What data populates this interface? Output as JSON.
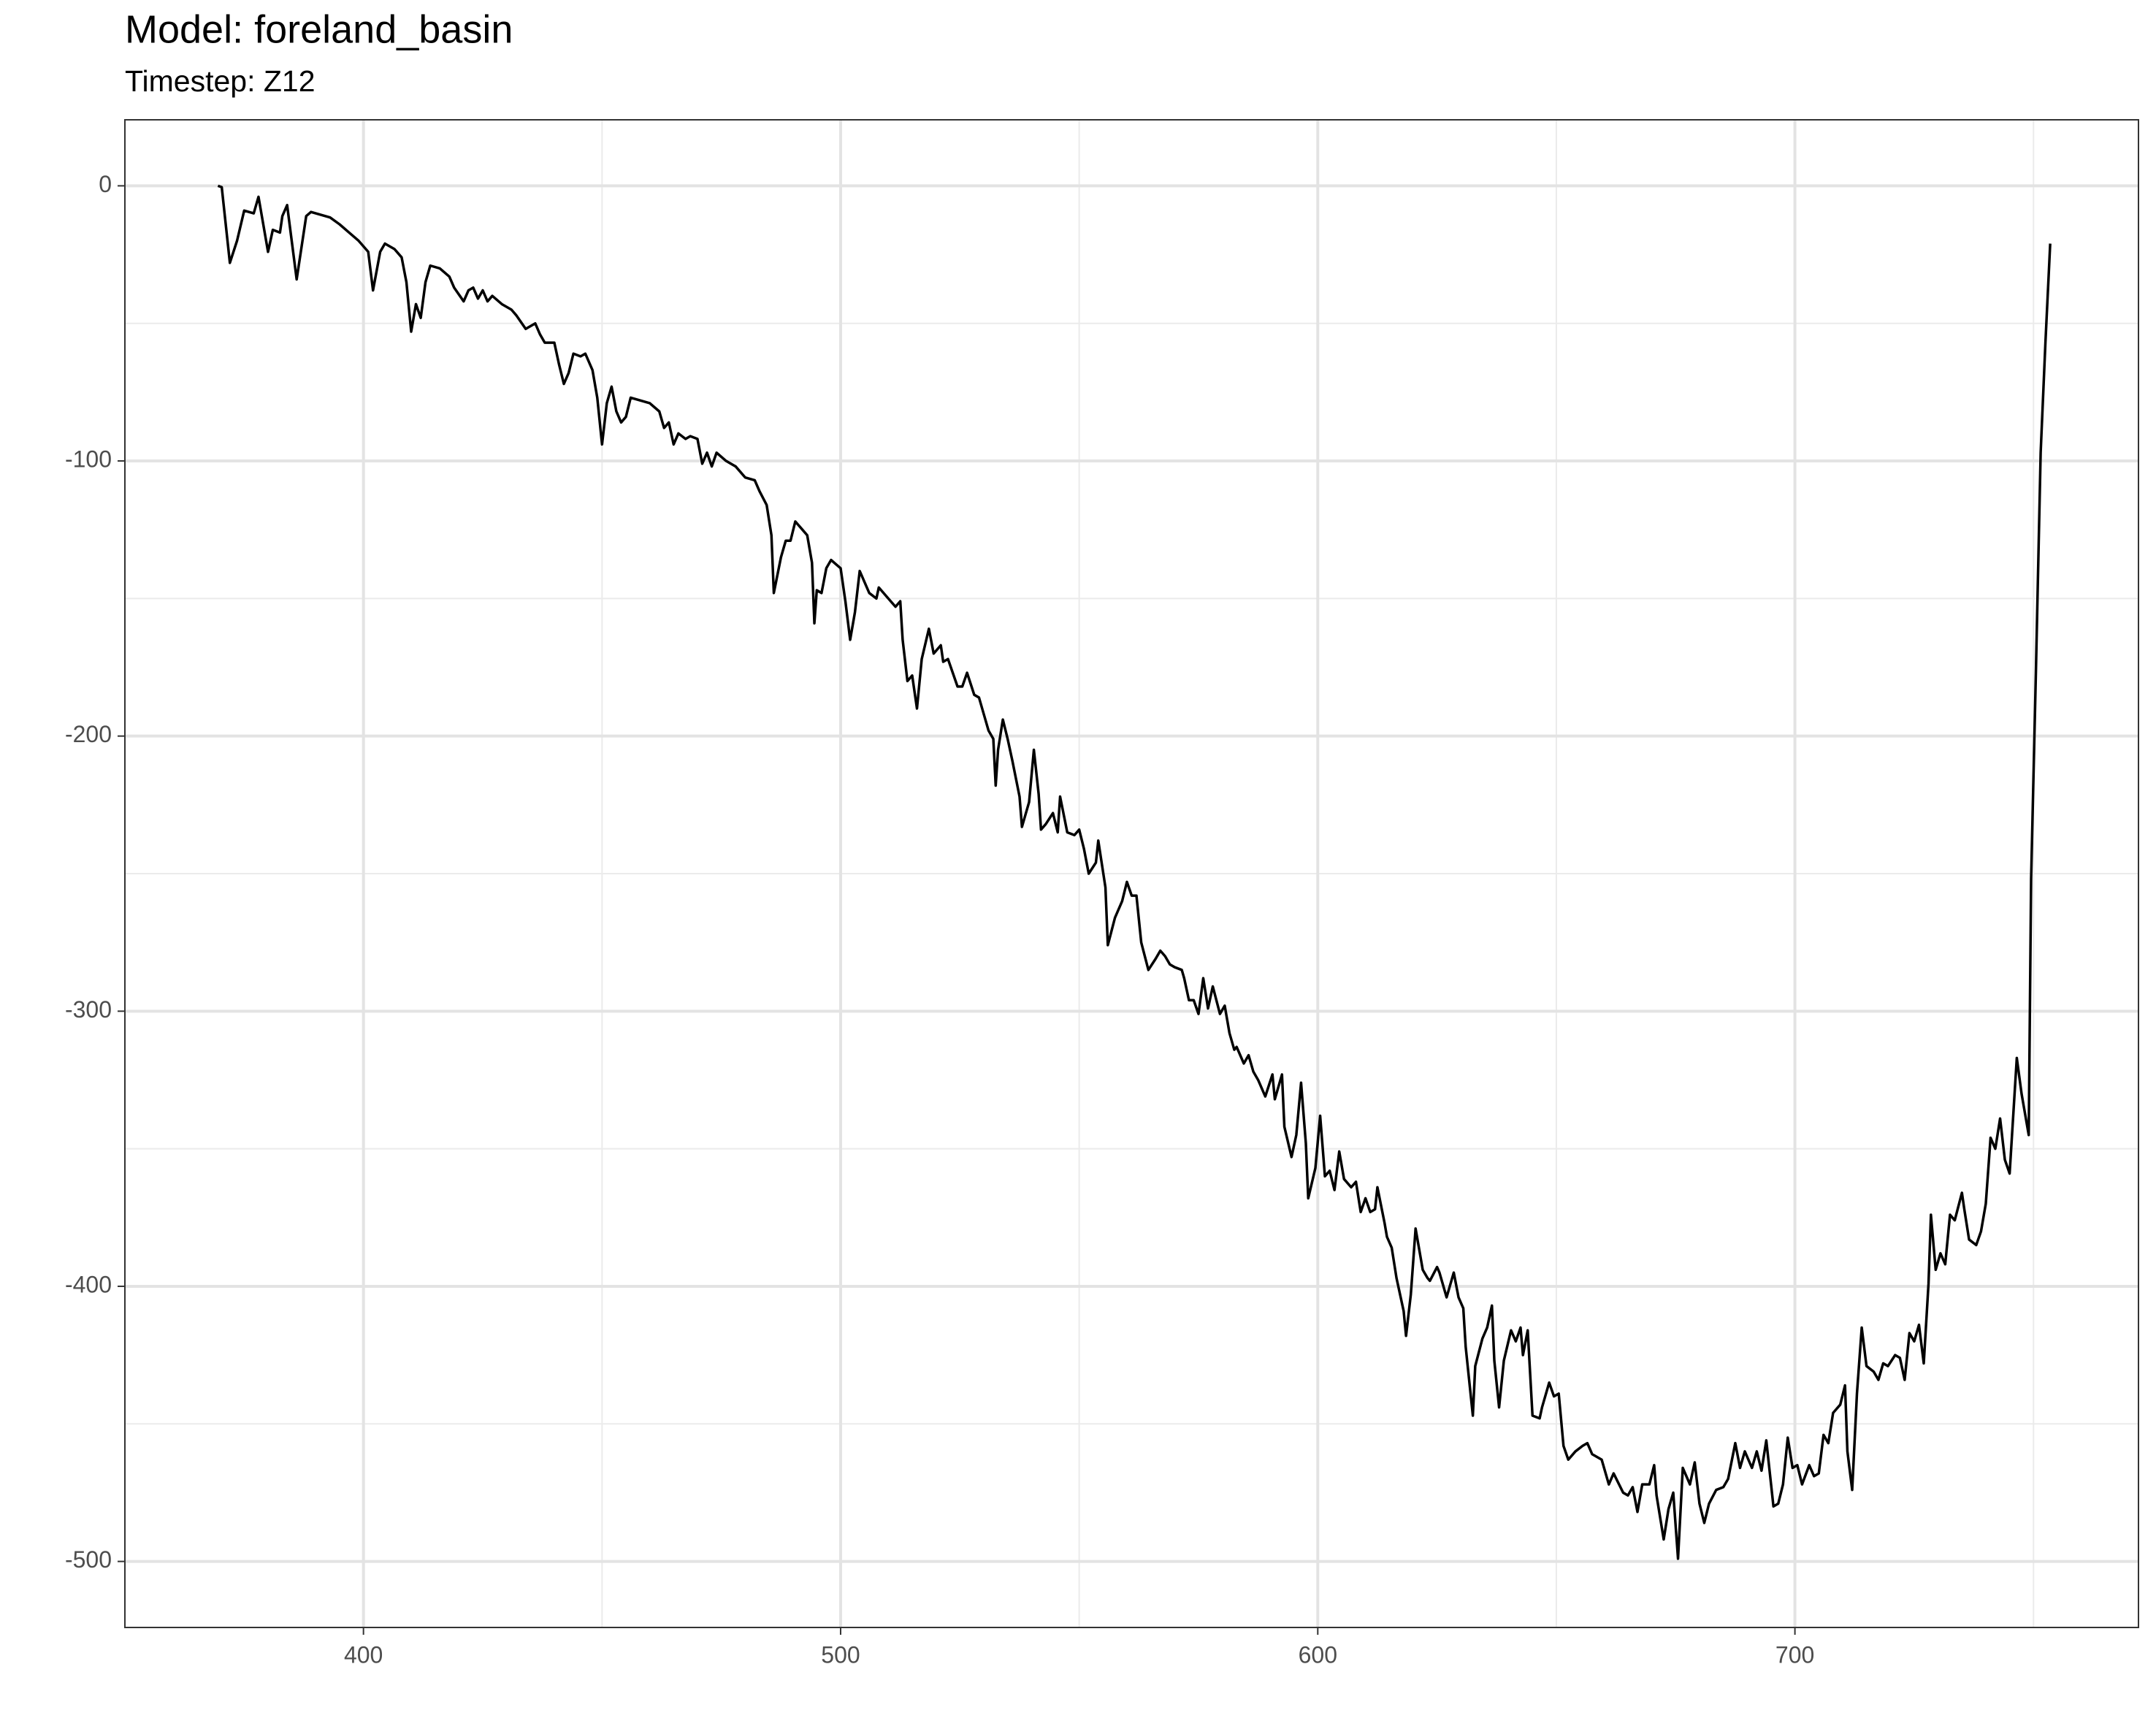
{
  "chart_data": {
    "type": "line",
    "title": "Model: foreland_basin",
    "subtitle": "Timestep: Z12",
    "color": "#000000",
    "grid": true,
    "xlim": [
      350,
      772
    ],
    "ylim": [
      -524,
      24
    ],
    "xticks": [
      400,
      500,
      600,
      700
    ],
    "yticks": [
      0,
      -100,
      -200,
      -300,
      -400,
      -500
    ],
    "x_minor_grid": [
      450,
      550,
      650,
      750
    ],
    "y_minor_grid": [
      -50,
      -150,
      -250,
      -350,
      -450
    ],
    "x": [
      369.5,
      370.3,
      372,
      373.5,
      375,
      377,
      378,
      380,
      381,
      382.5,
      383,
      384,
      386,
      388,
      389,
      391,
      393,
      395,
      397,
      399,
      401,
      402,
      403.5,
      404.5,
      406.5,
      408,
      409,
      410,
      411,
      412,
      413,
      414,
      416,
      418,
      419,
      421,
      422,
      423,
      424,
      425,
      426,
      427,
      429,
      431,
      432,
      434,
      436,
      437,
      438,
      440,
      441,
      442,
      443,
      444,
      445.5,
      446.5,
      448,
      449,
      450,
      451,
      452,
      453,
      454,
      455,
      456,
      458,
      460,
      462,
      463,
      464,
      465,
      466,
      467.5,
      468.5,
      470,
      471,
      472,
      473,
      474,
      476,
      478,
      480,
      482,
      483,
      484.5,
      485.5,
      486,
      487.5,
      488.5,
      489.5,
      490.5,
      492,
      493,
      494,
      494.5,
      495,
      496,
      497,
      498,
      500,
      501,
      502,
      503,
      504,
      506,
      507.5,
      508,
      510,
      511.5,
      512.5,
      513,
      514,
      515,
      516,
      517,
      518.5,
      519.5,
      521,
      521.5,
      522.5,
      524.5,
      525.5,
      526.5,
      528,
      529,
      530,
      531,
      532,
      532.5,
      533,
      534,
      535,
      536,
      537.5,
      538,
      539.5,
      540.5,
      541.5,
      542,
      543,
      544.5,
      545.5,
      546,
      547.5,
      549,
      550,
      551,
      552,
      553.5,
      554,
      555.5,
      556,
      557.5,
      559,
      560,
      561,
      562,
      563,
      564.5,
      566,
      567,
      568,
      569,
      570,
      571.5,
      572,
      573,
      574,
      575,
      576,
      577,
      578,
      579.5,
      580.5,
      581.5,
      582.5,
      583,
      584.5,
      585.5,
      586.5,
      587.5,
      589,
      590.5,
      591,
      592.5,
      593,
      594.5,
      595.5,
      596.5,
      597.5,
      598,
      599.5,
      600.5,
      601.5,
      602.5,
      603.5,
      604.5,
      605.5,
      607,
      608,
      609,
      610,
      611,
      612,
      612.5,
      614,
      614.5,
      615.5,
      616.5,
      618,
      618.5,
      619.5,
      620.5,
      622,
      623,
      623.5,
      625,
      625.5,
      627,
      628,
      628.5,
      629.5,
      630.5,
      631,
      632.5,
      633,
      634.5,
      635.5,
      636.5,
      637,
      638,
      639,
      640.5,
      641.5,
      642.5,
      643,
      644,
      645,
      646.5,
      647,
      648.5,
      649.5,
      650.5,
      651.5,
      652.5,
      654,
      655.5,
      656.5,
      657.5,
      659.5,
      661,
      662,
      664,
      665,
      666,
      667,
      668,
      669.5,
      670.5,
      671,
      672.5,
      673.5,
      674.5,
      675.5,
      676.5,
      678,
      679,
      680,
      681,
      682,
      683.5,
      685,
      686,
      687.5,
      688.5,
      689.5,
      691,
      692,
      693,
      694,
      695.5,
      696.5,
      697.5,
      698.5,
      699.5,
      700.5,
      701.5,
      703,
      704,
      705,
      706,
      707,
      708,
      709.5,
      710.5,
      711,
      712,
      713,
      714,
      715,
      716.5,
      717.5,
      718.5,
      719.5,
      721,
      722,
      723,
      724,
      725,
      726,
      727,
      728,
      728.5,
      729.5,
      730.5,
      731.5,
      732.5,
      733.5,
      735,
      735.5,
      736.5,
      738,
      739,
      740,
      741,
      742,
      743,
      744,
      745,
      745.5,
      746.5,
      747.5,
      749,
      749.5,
      750.5,
      751.5,
      752.5,
      753.5
    ],
    "values": [
      0,
      -0.5,
      -28,
      -20,
      -9,
      -10,
      -4,
      -24,
      -16,
      -17,
      -11,
      -7,
      -34,
      -11,
      -9.5,
      -10.5,
      -11.5,
      -14,
      -17,
      -20,
      -24,
      -38,
      -24,
      -21,
      -23,
      -26,
      -35,
      -53,
      -43,
      -48,
      -35,
      -29,
      -30,
      -33,
      -37,
      -42,
      -38,
      -37,
      -41,
      -38,
      -42,
      -40,
      -43,
      -45,
      -47,
      -52,
      -50,
      -54,
      -57,
      -57,
      -65,
      -72,
      -68,
      -61,
      -62,
      -61,
      -67,
      -77,
      -94,
      -79,
      -73,
      -82,
      -86,
      -84,
      -77,
      -78,
      -79,
      -82,
      -88,
      -86,
      -94,
      -90,
      -92,
      -91,
      -92,
      -101,
      -97,
      -102,
      -97,
      -100,
      -102,
      -106,
      -107,
      -111,
      -116,
      -127,
      -148,
      -135,
      -129,
      -129,
      -122,
      -125,
      -127,
      -137,
      -159,
      -147,
      -148,
      -139,
      -136,
      -139,
      -151,
      -165,
      -155,
      -140,
      -148,
      -150,
      -146,
      -150,
      -153,
      -151,
      -165,
      -180,
      -178,
      -190,
      -172,
      -161,
      -170,
      -167,
      -173,
      -172,
      -182,
      -182,
      -177,
      -185,
      -186,
      -192,
      -198,
      -201,
      -218,
      -205,
      -194,
      -201,
      -209,
      -222,
      -233,
      -224,
      -205,
      -221,
      -234,
      -232,
      -228,
      -235,
      -222,
      -235,
      -236,
      -234,
      -241,
      -250,
      -246,
      -238,
      -255,
      -276,
      -266,
      -260,
      -253,
      -258,
      -258,
      -275,
      -285,
      -281,
      -278,
      -280,
      -283,
      -284,
      -285,
      -288,
      -296,
      -296,
      -301,
      -288,
      -299,
      -291,
      -301,
      -298,
      -308,
      -314,
      -313,
      -319,
      -316,
      -322,
      -325,
      -331,
      -323,
      -332,
      -323,
      -342,
      -353,
      -345,
      -326,
      -348,
      -368,
      -357,
      -338,
      -360,
      -358,
      -365,
      -351,
      -361,
      -364,
      -362,
      -373,
      -368,
      -373,
      -372,
      -364,
      -377,
      -382,
      -386,
      -397,
      -409,
      -418,
      -403,
      -379,
      -394,
      -397,
      -398,
      -393,
      -395,
      -404,
      -398,
      -395,
      -404,
      -408,
      -422,
      -447,
      -429,
      -419,
      -415,
      -407,
      -427,
      -444,
      -427,
      -416,
      -420,
      -415,
      -425,
      -416,
      -447,
      -448,
      -444,
      -435,
      -440,
      -439,
      -458,
      -463,
      -460,
      -458,
      -457,
      -461,
      -463,
      -472,
      -468,
      -475,
      -476,
      -473,
      -482,
      -472,
      -472,
      -465,
      -476,
      -492,
      -481,
      -475,
      -499,
      -466,
      -472,
      -464,
      -479,
      -486,
      -479,
      -474,
      -473,
      -470,
      -457,
      -466,
      -460,
      -466,
      -460,
      -467,
      -456,
      -480,
      -479,
      -472,
      -455,
      -466,
      -465,
      -472,
      -465,
      -469,
      -468,
      -454,
      -457,
      -446,
      -443,
      -436,
      -460,
      -474,
      -439,
      -415,
      -429,
      -431,
      -434,
      -428,
      -429,
      -425,
      -426,
      -434,
      -417,
      -420,
      -414,
      -428,
      -399,
      -374,
      -394,
      -388,
      -392,
      -374,
      -376,
      -366,
      -372,
      -383,
      -385,
      -380,
      -370,
      -346,
      -350,
      -339,
      -354,
      -359,
      -345,
      -317,
      -330,
      -345,
      -252,
      -177,
      -97,
      -57,
      -21
    ]
  }
}
